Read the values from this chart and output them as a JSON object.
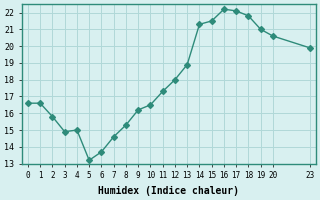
{
  "x": [
    0,
    1,
    2,
    3,
    4,
    5,
    6,
    7,
    8,
    9,
    10,
    11,
    12,
    13,
    14,
    15,
    16,
    17,
    18,
    19,
    20,
    23
  ],
  "y": [
    16.6,
    16.6,
    15.8,
    14.9,
    15.0,
    13.2,
    13.7,
    14.6,
    15.3,
    16.2,
    16.5,
    17.3,
    18.0,
    18.9,
    21.3,
    21.5,
    22.2,
    22.1,
    21.8,
    21.0,
    20.6,
    19.9
  ],
  "line_color": "#2e8b7a",
  "marker": "D",
  "marker_size": 3,
  "bg_color": "#d8f0f0",
  "grid_color": "#b0d8d8",
  "axis_color": "#2e8b7a",
  "xlabel": "Humidex (Indice chaleur)",
  "xlim": [
    -0.5,
    23.5
  ],
  "ylim": [
    13,
    22.5
  ],
  "yticks": [
    13,
    14,
    15,
    16,
    17,
    18,
    19,
    20,
    21,
    22
  ],
  "xticks": [
    0,
    1,
    2,
    3,
    4,
    5,
    6,
    7,
    8,
    9,
    10,
    11,
    12,
    13,
    14,
    15,
    16,
    17,
    18,
    19,
    20,
    23
  ],
  "xtick_labels": [
    "0",
    "1",
    "2",
    "3",
    "4",
    "5",
    "6",
    "7",
    "8",
    "9",
    "10",
    "11",
    "12",
    "13",
    "14",
    "15",
    "16",
    "17",
    "18",
    "19",
    "20",
    "23"
  ]
}
